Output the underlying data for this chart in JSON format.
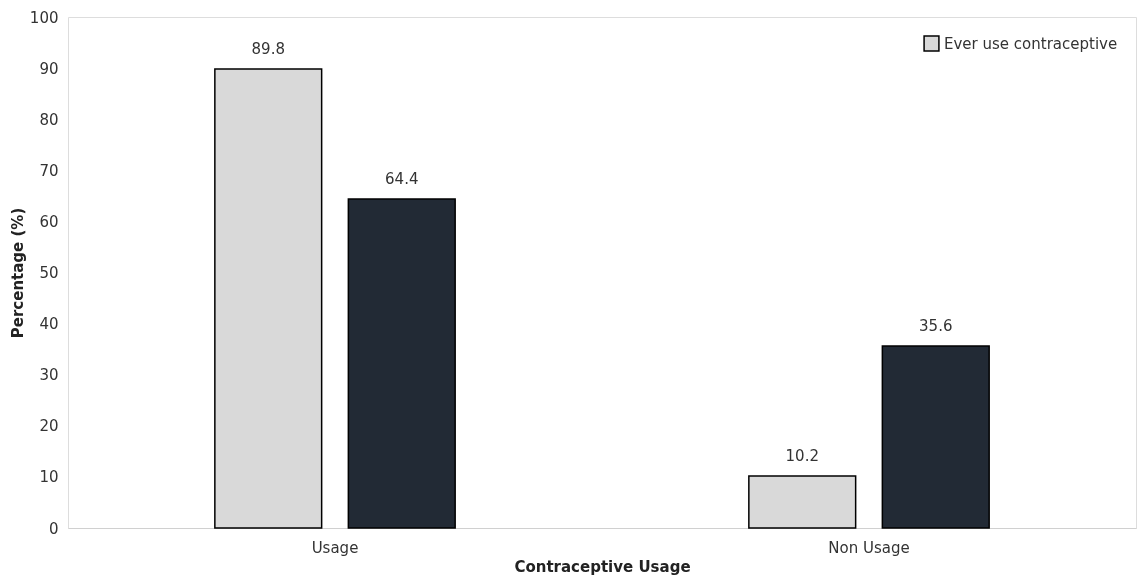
{
  "chart_data": {
    "type": "bar",
    "xlabel": "Contraceptive Usage",
    "ylabel": "Percentage (%)",
    "categories": [
      "Usage",
      "Non Usage"
    ],
    "series": [
      {
        "name": "Ever use contraceptive",
        "color": "#d9d9d9",
        "values": [
          89.8,
          10.2
        ]
      },
      {
        "color": "#222a35",
        "values": [
          64.4,
          35.6
        ]
      }
    ],
    "ylim": [
      0,
      100
    ],
    "yticks": [
      0,
      10,
      20,
      30,
      40,
      50,
      60,
      70,
      80,
      90,
      100
    ],
    "grid": false,
    "legend": "top right",
    "data_labels": true
  }
}
